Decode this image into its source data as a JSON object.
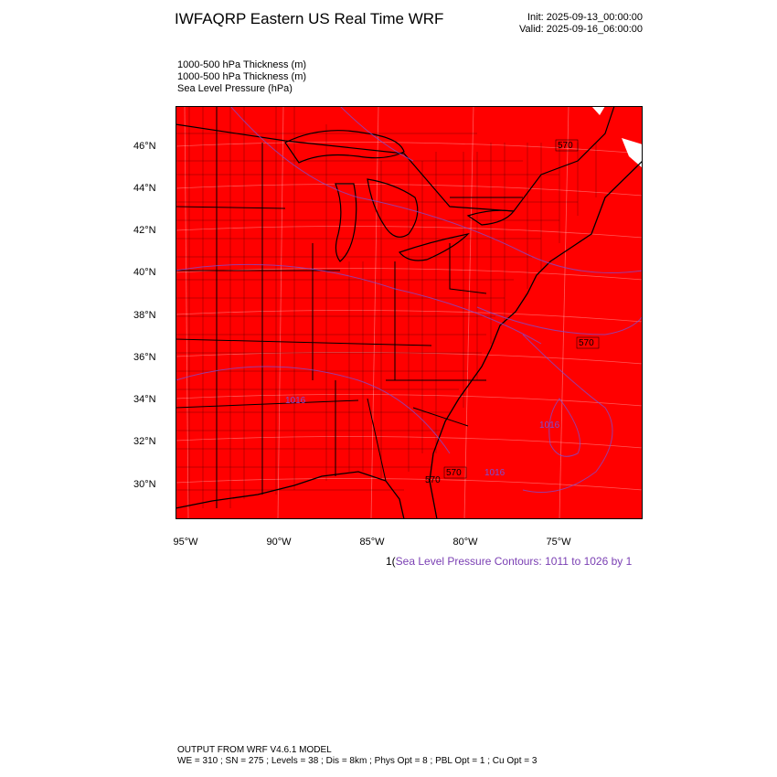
{
  "header": {
    "title": "IWFAQRP Eastern US Real Time WRF",
    "init": "Init: 2025-09-13_00:00:00",
    "valid": "Valid: 2025-09-16_06:00:00"
  },
  "fields": [
    "1000-500 hPa Thickness   (m)",
    "1000-500 hPa Thickness   (m)",
    "Sea Level Pressure   (hPa)"
  ],
  "map": {
    "fill_color": "#ff0000",
    "water_color": "#ffffff",
    "contour_color": "#7a4fd6",
    "contour_labels": [
      "570",
      "570",
      "570",
      "570",
      "1016",
      "1016",
      "1016"
    ],
    "lat_labels": [
      "46°N",
      "44°N",
      "42°N",
      "40°N",
      "38°N",
      "36°N",
      "34°N",
      "32°N",
      "30°N"
    ],
    "lon_labels": [
      "95°W",
      "90°W",
      "85°W",
      "80°W",
      "75°W"
    ]
  },
  "contour_info": {
    "prefix": "1(",
    "text": "Sea Level Pressure Contours: 1011 to 1026 by 1"
  },
  "footer": {
    "line1": "OUTPUT FROM WRF V4.6.1 MODEL",
    "line2": "WE = 310 ; SN = 275 ; Levels = 38 ; Dis = 8km ; Phys Opt = 8 ; PBL Opt = 1 ; Cu Opt = 3"
  }
}
